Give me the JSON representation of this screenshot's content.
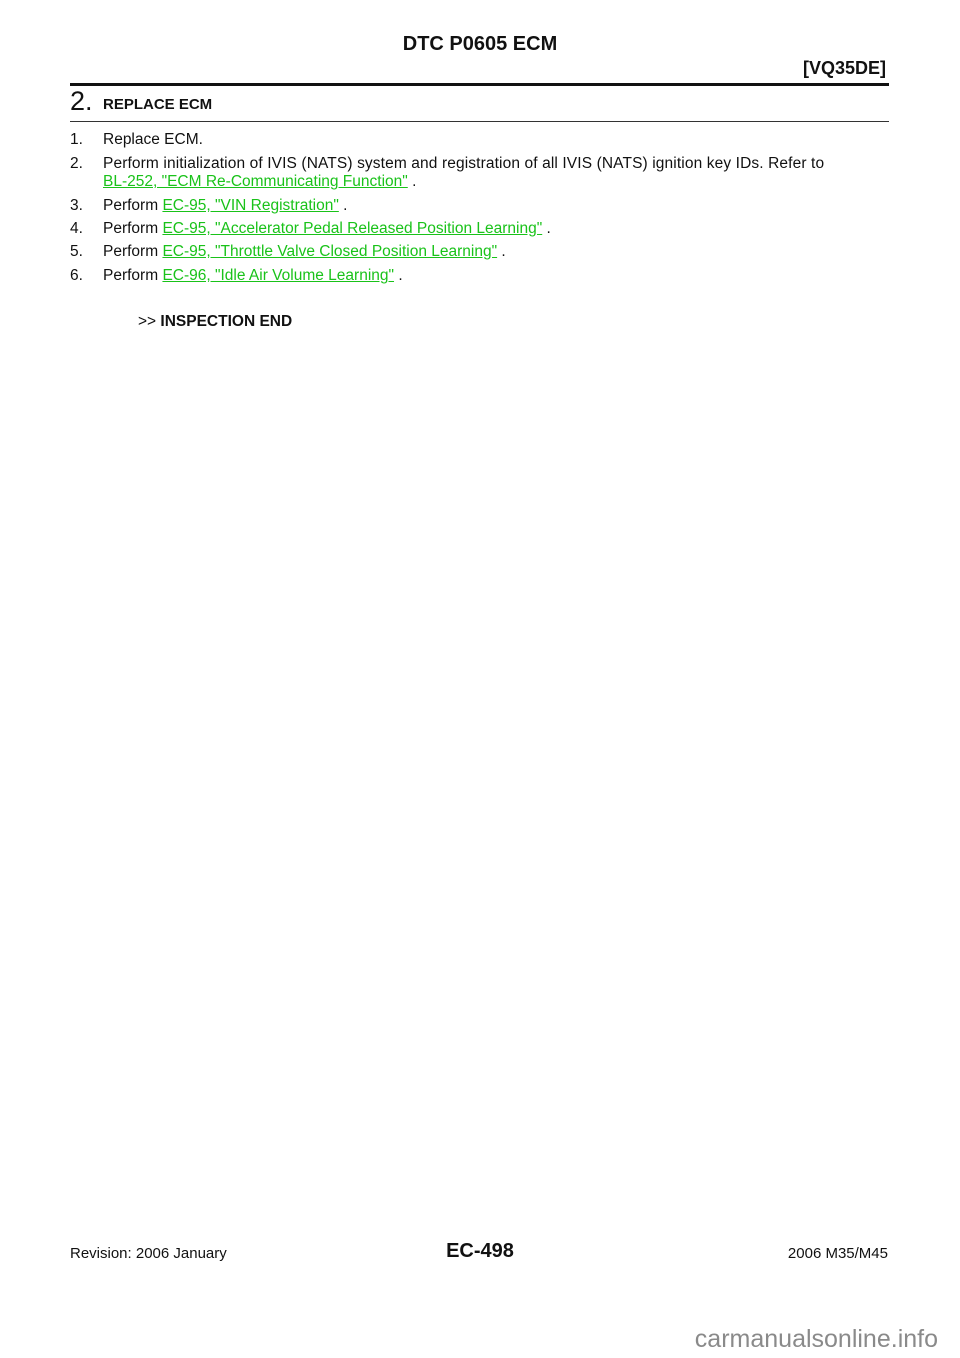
{
  "header": {
    "title": "DTC P0605 ECM",
    "engine": "[VQ35DE]"
  },
  "step": {
    "number": "2.",
    "title": "REPLACE ECM"
  },
  "items": [
    {
      "num": "1.",
      "text": "Replace ECM."
    },
    {
      "num": "2.",
      "text": "Perform initialization of IVIS (NATS) system and registration of all IVIS (NATS) ignition key IDs. Refer to",
      "link": "BL-252, \"ECM Re-Communicating Function\"",
      "suffix": " ."
    },
    {
      "num": "3.",
      "text": "Perform ",
      "link": "EC-95, \"VIN Registration\"",
      "suffix": " ."
    },
    {
      "num": "4.",
      "text": "Perform ",
      "link": "EC-95, \"Accelerator Pedal Released Position Learning\"",
      "suffix": " ."
    },
    {
      "num": "5.",
      "text": "Perform ",
      "link": "EC-95, \"Throttle Valve Closed Position Learning\"",
      "suffix": " ."
    },
    {
      "num": "6.",
      "text": "Perform ",
      "link": "EC-96, \"Idle Air Volume Learning\"",
      "suffix": " ."
    }
  ],
  "result": {
    "prefix": ">> ",
    "label": "INSPECTION END"
  },
  "footer": {
    "revision": "Revision: 2006 January",
    "page": "EC-498",
    "model": "2006 M35/M45"
  },
  "watermark": "carmanualsonline.info",
  "colors": {
    "link": "#19c219"
  }
}
